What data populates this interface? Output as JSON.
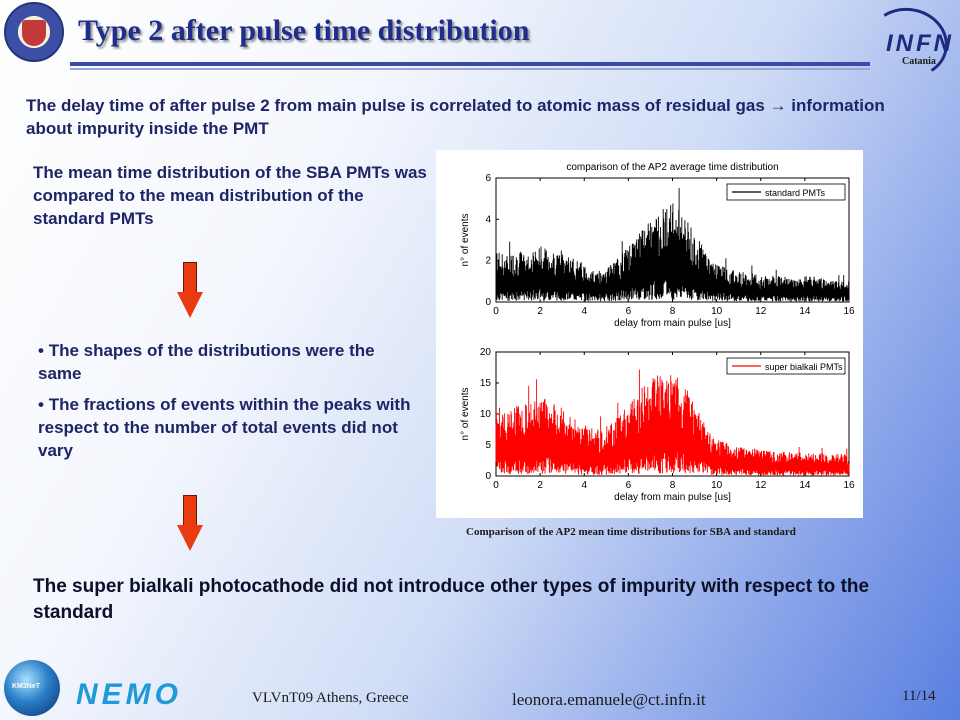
{
  "slide": {
    "title": "Type 2 after pulse time distribution",
    "intro": "The delay time of after pulse 2 from main pulse is correlated to atomic mass of residual gas → information about impurity inside the PMT",
    "mean_text": "The mean time distribution of the SBA PMTs was compared to the mean distribution of the standard PMTs",
    "bullets": [
      "The shapes of the distributions were the same",
      "The fractions of events within the peaks with respect to the number of total events did not vary"
    ],
    "conclusion": "The super bialkali photocathode did not introduce other types of impurity with respect to the standard",
    "caption": "Comparison of the AP2 mean time distributions for SBA and standard",
    "logo_infn": "INFN",
    "logo_catania": "Catania",
    "logo_km3": "KM3NeT",
    "logo_nemo": "NEMO",
    "footer_venue": "VLVnT09 Athens, Greece",
    "footer_email": "leonora.emanuele@ct.infn.it",
    "page_number": "11/14"
  },
  "chart_data": [
    {
      "type": "line",
      "title": "comparison of the AP2 average time distribution",
      "xlabel": "delay from main pulse [us]",
      "ylabel": "n° of events",
      "xlim": [
        0,
        16
      ],
      "ylim": [
        0,
        6
      ],
      "xticks": [
        0,
        2,
        4,
        6,
        8,
        10,
        12,
        14,
        16
      ],
      "yticks": [
        0,
        2,
        4,
        6
      ],
      "legend": "top-right",
      "series": [
        {
          "name": "standard PMTs",
          "color": "#000000",
          "x": [
            0,
            0.5,
            1,
            1.5,
            2,
            2.5,
            3,
            3.5,
            4,
            4.5,
            5,
            5.5,
            6,
            6.5,
            7,
            7.5,
            8,
            8.5,
            9,
            9.5,
            10,
            10.5,
            11,
            11.5,
            12,
            12.5,
            13,
            13.5,
            14,
            14.5,
            15,
            15.5,
            16
          ],
          "y": [
            1.2,
            1.1,
            1.2,
            1.1,
            1.3,
            1.2,
            1.2,
            1.0,
            0.9,
            0.7,
            0.8,
            1.0,
            1.3,
            1.6,
            1.9,
            2.2,
            2.3,
            2.0,
            1.6,
            1.2,
            0.9,
            0.8,
            0.7,
            0.7,
            0.6,
            0.6,
            0.6,
            0.5,
            0.6,
            0.6,
            0.5,
            0.5,
            0.5
          ]
        }
      ]
    },
    {
      "type": "line",
      "xlabel": "delay from main pulse [us]",
      "ylabel": "n° of events",
      "xlim": [
        0,
        16
      ],
      "ylim": [
        0,
        20
      ],
      "xticks": [
        0,
        2,
        4,
        6,
        8,
        10,
        12,
        14,
        16
      ],
      "yticks": [
        0,
        5,
        10,
        15,
        20
      ],
      "legend": "top-right",
      "series": [
        {
          "name": "super bialkali PMTs",
          "color": "#ff0000",
          "x": [
            0,
            0.5,
            1,
            1.5,
            2,
            2.5,
            3,
            3.5,
            4,
            4.5,
            5,
            5.5,
            6,
            6.5,
            7,
            7.5,
            8,
            8.5,
            9,
            9.5,
            10,
            10.5,
            11,
            11.5,
            12,
            12.5,
            13,
            13.5,
            14,
            14.5,
            15,
            15.5,
            16
          ],
          "y": [
            5.5,
            5.2,
            5.4,
            5.6,
            6.2,
            5.8,
            5.3,
            4.6,
            4.0,
            3.6,
            3.8,
            4.5,
            5.6,
            6.6,
            7.4,
            8.0,
            8.2,
            7.2,
            5.6,
            4.0,
            3.0,
            2.6,
            2.3,
            2.2,
            2.0,
            1.9,
            1.9,
            1.8,
            1.8,
            1.8,
            1.7,
            1.7,
            1.7
          ]
        }
      ]
    }
  ]
}
